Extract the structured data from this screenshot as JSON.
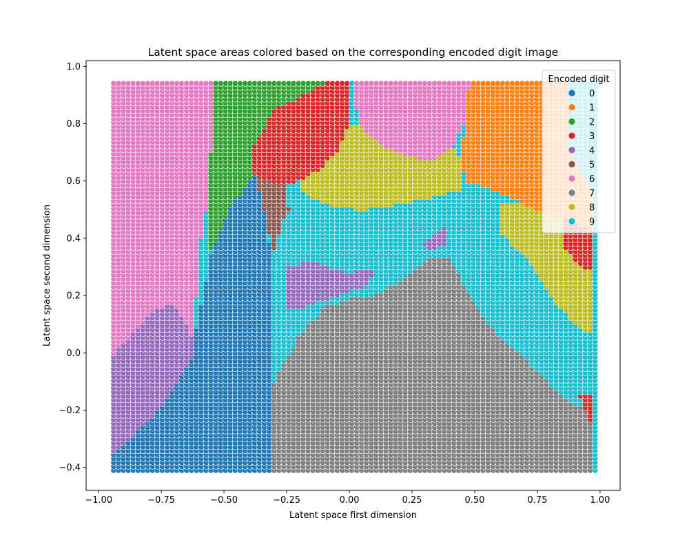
{
  "chart_data": {
    "type": "scatter",
    "title": "Latent space areas colored based on the corresponding encoded digit image",
    "xlabel": "Latent space first dimension",
    "ylabel": "Latent space second dimension",
    "xlim": [
      -1.05,
      1.08
    ],
    "ylim": [
      -0.48,
      1.02
    ],
    "xticks": [
      -1.0,
      -0.75,
      -0.5,
      -0.25,
      0.0,
      0.25,
      0.5,
      0.75,
      1.0
    ],
    "xtick_labels": [
      "−1.00",
      "−0.75",
      "−0.50",
      "−0.25",
      "0.00",
      "0.25",
      "0.50",
      "0.75",
      "1.00"
    ],
    "yticks": [
      -0.4,
      -0.2,
      0.0,
      0.2,
      0.4,
      0.6,
      0.8,
      1.0
    ],
    "ytick_labels": [
      "−0.4",
      "−0.2",
      "0.0",
      "0.2",
      "0.4",
      "0.6",
      "0.8",
      "1.0"
    ],
    "grid": false,
    "legend": {
      "title": "Encoded digit",
      "placement": "top-right",
      "entries": [
        "0",
        "1",
        "2",
        "3",
        "4",
        "5",
        "6",
        "7",
        "8",
        "9"
      ]
    },
    "colors": [
      "#1f77b4",
      "#ff7f0e",
      "#2ca02c",
      "#d62728",
      "#9467bd",
      "#8c564b",
      "#e377c2",
      "#7f7f7f",
      "#bcbd22",
      "#17becf"
    ],
    "grid_sampling": {
      "x_range": [
        -0.94,
        0.98
      ],
      "y_range": [
        -0.41,
        0.94
      ],
      "points_per_axis": 100
    },
    "regions": [
      {
        "digit": "6",
        "polygon": [
          [
            -0.95,
            0.95
          ],
          [
            -0.55,
            0.95
          ],
          [
            -0.55,
            0.73
          ],
          [
            -0.57,
            0.5
          ],
          [
            -0.6,
            0.35
          ],
          [
            -0.62,
            0.05
          ],
          [
            -0.65,
            0.1
          ],
          [
            -0.7,
            0.17
          ],
          [
            -0.78,
            0.15
          ],
          [
            -0.85,
            0.08
          ],
          [
            -0.95,
            -0.01
          ]
        ]
      },
      {
        "digit": "4",
        "polygon": [
          [
            -0.95,
            -0.01
          ],
          [
            -0.85,
            0.08
          ],
          [
            -0.78,
            0.15
          ],
          [
            -0.7,
            0.17
          ],
          [
            -0.65,
            0.1
          ],
          [
            -0.62,
            0.05
          ],
          [
            -0.62,
            0.0
          ],
          [
            -0.68,
            -0.1
          ],
          [
            -0.78,
            -0.22
          ],
          [
            -0.95,
            -0.36
          ]
        ]
      },
      {
        "digit": "0",
        "polygon": [
          [
            -0.95,
            -0.36
          ],
          [
            -0.78,
            -0.22
          ],
          [
            -0.68,
            -0.1
          ],
          [
            -0.62,
            0.0
          ],
          [
            -0.62,
            0.05
          ],
          [
            -0.55,
            0.35
          ],
          [
            -0.48,
            0.5
          ],
          [
            -0.38,
            0.63
          ],
          [
            -0.35,
            0.55
          ],
          [
            -0.32,
            0.4
          ],
          [
            -0.3,
            0.2
          ],
          [
            -0.3,
            -0.42
          ],
          [
            -0.95,
            -0.42
          ]
        ]
      },
      {
        "digit": "2",
        "polygon": [
          [
            -0.55,
            0.95
          ],
          [
            -0.08,
            0.95
          ],
          [
            -0.3,
            0.85
          ],
          [
            -0.38,
            0.72
          ],
          [
            -0.38,
            0.63
          ],
          [
            -0.48,
            0.5
          ],
          [
            -0.55,
            0.35
          ],
          [
            -0.57,
            0.5
          ],
          [
            -0.55,
            0.73
          ]
        ]
      },
      {
        "digit": "3",
        "polygon": [
          [
            -0.08,
            0.95
          ],
          [
            0.01,
            0.95
          ],
          [
            0.0,
            0.8
          ],
          [
            -0.05,
            0.7
          ],
          [
            -0.12,
            0.64
          ],
          [
            -0.2,
            0.6
          ],
          [
            -0.26,
            0.59
          ],
          [
            -0.32,
            0.6
          ],
          [
            -0.38,
            0.63
          ],
          [
            -0.38,
            0.72
          ],
          [
            -0.3,
            0.85
          ]
        ]
      },
      {
        "digit": "5",
        "polygon": [
          [
            -0.38,
            0.63
          ],
          [
            -0.32,
            0.6
          ],
          [
            -0.26,
            0.59
          ],
          [
            -0.24,
            0.5
          ],
          [
            -0.27,
            0.45
          ],
          [
            -0.3,
            0.36
          ],
          [
            -0.33,
            0.45
          ],
          [
            -0.35,
            0.55
          ]
        ]
      },
      {
        "digit": "6",
        "polygon": [
          [
            0.01,
            0.95
          ],
          [
            0.48,
            0.95
          ],
          [
            0.46,
            0.8
          ],
          [
            0.41,
            0.72
          ],
          [
            0.33,
            0.67
          ],
          [
            0.22,
            0.69
          ],
          [
            0.12,
            0.73
          ],
          [
            0.04,
            0.8
          ]
        ]
      },
      {
        "digit": "8",
        "polygon": [
          [
            0.0,
            0.8
          ],
          [
            0.04,
            0.8
          ],
          [
            0.12,
            0.73
          ],
          [
            0.22,
            0.69
          ],
          [
            0.33,
            0.67
          ],
          [
            0.41,
            0.72
          ],
          [
            0.45,
            0.68
          ],
          [
            0.45,
            0.57
          ],
          [
            0.35,
            0.55
          ],
          [
            0.2,
            0.52
          ],
          [
            0.05,
            0.5
          ],
          [
            -0.1,
            0.52
          ],
          [
            -0.2,
            0.57
          ],
          [
            -0.2,
            0.6
          ],
          [
            -0.12,
            0.64
          ],
          [
            -0.05,
            0.7
          ]
        ]
      },
      {
        "digit": "1",
        "polygon": [
          [
            0.48,
            0.95
          ],
          [
            0.87,
            0.95
          ],
          [
            0.87,
            0.72
          ],
          [
            0.98,
            0.55
          ],
          [
            0.98,
            0.42
          ],
          [
            0.9,
            0.45
          ],
          [
            0.8,
            0.48
          ],
          [
            0.7,
            0.52
          ],
          [
            0.55,
            0.58
          ],
          [
            0.46,
            0.6
          ],
          [
            0.45,
            0.68
          ],
          [
            0.46,
            0.8
          ]
        ]
      },
      {
        "digit": "8",
        "polygon": [
          [
            0.6,
            0.52
          ],
          [
            0.7,
            0.52
          ],
          [
            0.8,
            0.48
          ],
          [
            0.9,
            0.45
          ],
          [
            0.98,
            0.42
          ],
          [
            0.98,
            0.06
          ],
          [
            0.9,
            0.1
          ],
          [
            0.8,
            0.2
          ],
          [
            0.7,
            0.34
          ],
          [
            0.6,
            0.42
          ]
        ]
      },
      {
        "digit": "3",
        "polygon": [
          [
            0.85,
            0.47
          ],
          [
            0.95,
            0.44
          ],
          [
            0.98,
            0.4
          ],
          [
            0.98,
            0.28
          ],
          [
            0.92,
            0.3
          ],
          [
            0.85,
            0.38
          ]
        ]
      },
      {
        "digit": "4",
        "polygon": [
          [
            -0.25,
            0.3
          ],
          [
            -0.15,
            0.32
          ],
          [
            0.0,
            0.28
          ],
          [
            0.1,
            0.3
          ],
          [
            0.08,
            0.24
          ],
          [
            -0.05,
            0.2
          ],
          [
            -0.18,
            0.16
          ],
          [
            -0.25,
            0.16
          ]
        ]
      },
      {
        "digit": "4",
        "polygon": [
          [
            0.3,
            0.38
          ],
          [
            0.35,
            0.43
          ],
          [
            0.38,
            0.44
          ],
          [
            0.38,
            0.38
          ],
          [
            0.33,
            0.36
          ]
        ]
      },
      {
        "digit": "7",
        "polygon": [
          [
            -0.3,
            -0.42
          ],
          [
            0.98,
            -0.42
          ],
          [
            0.98,
            -0.22
          ],
          [
            0.85,
            -0.15
          ],
          [
            0.7,
            -0.02
          ],
          [
            0.55,
            0.1
          ],
          [
            0.45,
            0.25
          ],
          [
            0.4,
            0.34
          ],
          [
            0.33,
            0.34
          ],
          [
            0.22,
            0.26
          ],
          [
            0.1,
            0.2
          ],
          [
            0.0,
            0.19
          ],
          [
            -0.1,
            0.16
          ],
          [
            -0.2,
            0.06
          ],
          [
            -0.27,
            -0.05
          ],
          [
            -0.3,
            -0.1
          ]
        ]
      },
      {
        "digit": "3",
        "polygon": [
          [
            0.92,
            -0.15
          ],
          [
            0.98,
            -0.15
          ],
          [
            0.98,
            -0.27
          ],
          [
            0.95,
            -0.22
          ]
        ]
      }
    ]
  }
}
